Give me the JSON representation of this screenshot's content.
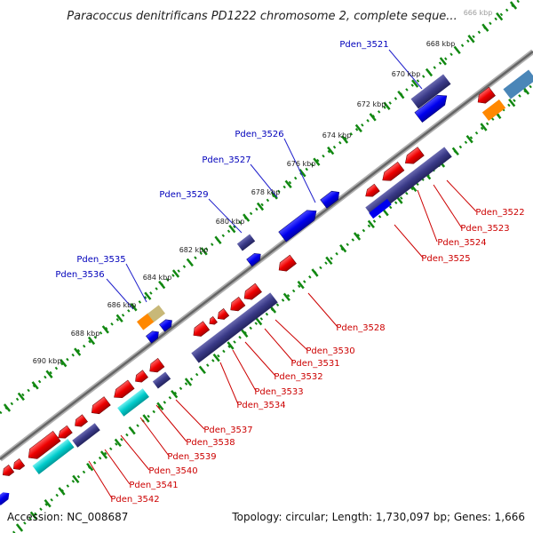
{
  "title": "Paracoccus denitrificans PD1222 chromosome 2, complete seque...",
  "footer": {
    "accession": "Accession: NC_008687",
    "summary": "Topology: circular; Length: 1,730,097 bp; Genes: 1,666"
  },
  "ticks": [
    "666 kbp",
    "668 kbp",
    "670 kbp",
    "672 kbp",
    "674 kbp",
    "676 kbp",
    "678 kbp",
    "680 kbp",
    "682 kbp",
    "684 kbp",
    "686 kbp",
    "688 kbp",
    "690 kbp"
  ],
  "outer_labels": [
    "Pden_3521",
    "Pden_3526",
    "Pden_3527",
    "Pden_3529",
    "Pden_3535",
    "Pden_3536"
  ],
  "inner_labels": [
    "Pden_3522",
    "Pden_3523",
    "Pden_3524",
    "Pden_3525",
    "Pden_3528",
    "Pden_3530",
    "Pden_3531",
    "Pden_3532",
    "Pden_3533",
    "Pden_3534",
    "Pden_3537",
    "Pden_3538",
    "Pden_3539",
    "Pden_3540",
    "Pden_3541",
    "Pden_3542"
  ],
  "colors": {
    "forward_cds": "#0000ee",
    "reverse_cds": "#ee0000",
    "protein_band": "#3a3a88",
    "cyan_band": "#00cccc",
    "orange_feature": "#ff8800",
    "tan_feature": "#c8b878",
    "steel_feature": "#4a86b8",
    "backbone": "#777777",
    "tick_green": "#118811"
  }
}
